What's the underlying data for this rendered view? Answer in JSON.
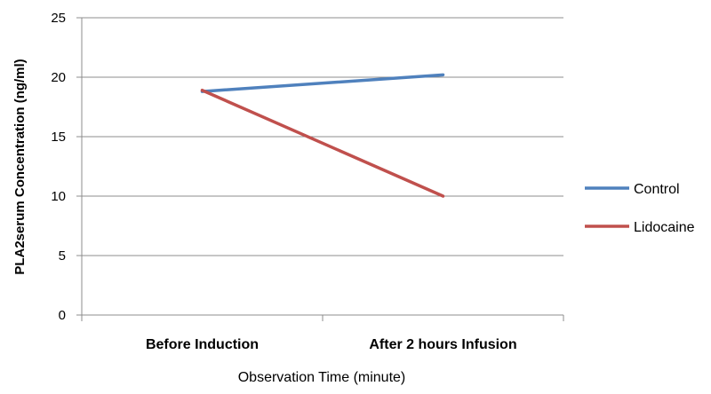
{
  "chart_data": {
    "type": "line",
    "title": "",
    "xlabel": "Observation Time (minute)",
    "ylabel": "PLA2serum Concentration (ng/ml)",
    "categories": [
      "Before Induction",
      "After 2 hours Infusion"
    ],
    "ylim": [
      0,
      25
    ],
    "yticks": [
      0,
      5,
      10,
      15,
      20,
      25
    ],
    "grid": "horizontal",
    "legend_position": "right",
    "series": [
      {
        "name": "Control",
        "values": [
          18.8,
          20.2
        ],
        "color": "#4F81BD"
      },
      {
        "name": "Lidocaine",
        "values": [
          18.9,
          10.0
        ],
        "color": "#C0504D"
      }
    ]
  }
}
